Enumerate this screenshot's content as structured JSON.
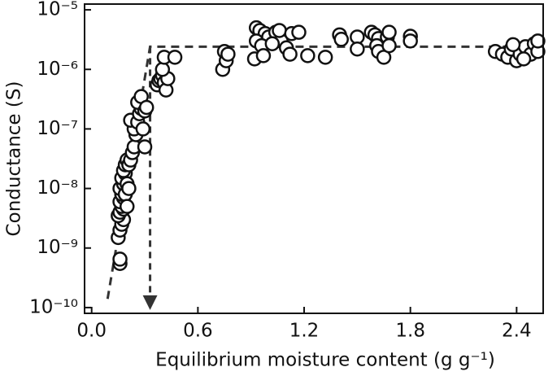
{
  "chart_data": {
    "type": "scatter",
    "x_label": "Equilibrium moisture content (g g⁻¹)",
    "y_label": "Conductance (S)",
    "log_y": true,
    "xlim": [
      -0.04,
      2.55
    ],
    "ylim": [
      8e-11,
      1.25e-05
    ],
    "xticks": [
      {
        "value": 0,
        "label": "0.0"
      },
      0.6,
      1.2,
      1.8,
      2.4
    ],
    "yticks": [
      {
        "value": 1e-10,
        "label": "10⁻¹⁰"
      },
      {
        "value": 1e-09,
        "label": "10⁻⁹"
      },
      {
        "value": 1e-08,
        "label": "10⁻⁸"
      },
      {
        "value": 1e-07,
        "label": "10⁻⁷"
      },
      {
        "value": 1e-06,
        "label": "10⁻⁶"
      },
      {
        "value": 1e-05,
        "label": "10⁻⁵"
      }
    ],
    "fit_line": {
      "x": [
        0.09,
        0.33,
        2.53
      ],
      "y": [
        1.4e-10,
        2.4e-06,
        2.4e-06
      ]
    },
    "threshold_arrow": {
      "x": 0.33,
      "y_top": 2.4e-06,
      "y_bottom": 1.1e-10
    },
    "series": [
      {
        "color": "#ffffff",
        "x": [
          0.16,
          0.16,
          0.15,
          0.16,
          0.17,
          0.18,
          0.15,
          0.16,
          0.18,
          0.17,
          0.16,
          0.18,
          0.17,
          0.16,
          0.18,
          0.17,
          0.19,
          0.18,
          0.19,
          0.2,
          0.21,
          0.2,
          0.19,
          0.22,
          0.23,
          0.24,
          0.25,
          0.24,
          0.22,
          0.26,
          0.27,
          0.28,
          0.26,
          0.28,
          0.3,
          0.31,
          0.29,
          0.3,
          0.21,
          0.2,
          0.37,
          0.38,
          0.39,
          0.4,
          0.41,
          0.42,
          0.43,
          0.4,
          0.41,
          0.47,
          0.74,
          0.76,
          0.75,
          0.77,
          0.93,
          0.95,
          0.98,
          1.0,
          0.93,
          0.96,
          0.92,
          0.97,
          1.04,
          1.07,
          1.1,
          1.12,
          1.02,
          1.06,
          1.13,
          1.17,
          1.22,
          1.32,
          1.4,
          1.41,
          1.5,
          1.5,
          1.58,
          1.6,
          1.62,
          1.61,
          1.62,
          1.65,
          1.67,
          1.68,
          1.68,
          1.8,
          1.8,
          2.28,
          2.32,
          2.35,
          2.37,
          2.4,
          2.42,
          2.45,
          2.48,
          2.5,
          2.52,
          2.52,
          2.38,
          2.44
        ],
        "values": [
          5.5e-10,
          6.5e-10,
          1.5e-09,
          2e-09,
          2.5e-09,
          3e-09,
          3.5e-09,
          4e-09,
          4.5e-09,
          5e-09,
          6e-09,
          7e-09,
          8e-09,
          1e-08,
          1.2e-08,
          1.5e-08,
          1.8e-08,
          2e-08,
          2.5e-08,
          3e-08,
          2.5e-08,
          1.2e-08,
          8e-09,
          3e-08,
          4e-08,
          5e-08,
          8e-08,
          1e-07,
          1.4e-07,
          1.3e-07,
          1.8e-07,
          2.2e-07,
          2.8e-07,
          3.5e-07,
          2e-07,
          2.3e-07,
          1e-07,
          5e-08,
          1e-08,
          5e-09,
          5.5e-07,
          6.5e-07,
          7e-07,
          8e-07,
          6e-07,
          4.5e-07,
          7e-07,
          1e-06,
          1.6e-06,
          1.6e-06,
          1e-06,
          1.4e-06,
          2e-06,
          1.8e-06,
          5e-06,
          4.5e-06,
          4e-06,
          3.5e-06,
          3e-06,
          2.5e-06,
          1.5e-06,
          1.7e-06,
          4.2e-06,
          3e-06,
          2.3e-06,
          1.8e-06,
          2.7e-06,
          4.5e-06,
          4e-06,
          4.2e-06,
          1.7e-06,
          1.6e-06,
          3.8e-06,
          3.2e-06,
          3.5e-06,
          2.2e-06,
          4.2e-06,
          3.8e-06,
          3.3e-06,
          2.5e-06,
          2e-06,
          1.6e-06,
          3.5e-06,
          4.2e-06,
          2.5e-06,
          3.6e-06,
          3e-06,
          2e-06,
          1.8e-06,
          1.6e-06,
          2.2e-06,
          1.4e-06,
          1.8e-06,
          2.4e-06,
          1.8e-06,
          2.7e-06,
          2e-06,
          3e-06,
          2.6e-06,
          1.5e-06
        ]
      }
    ]
  }
}
